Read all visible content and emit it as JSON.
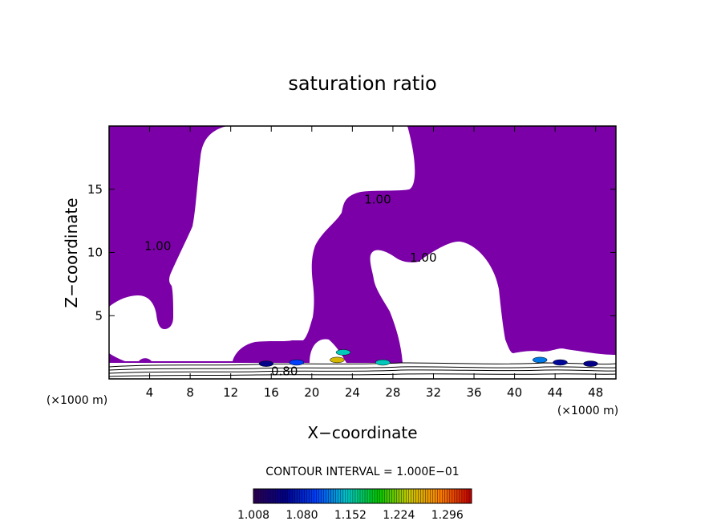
{
  "chart_data": {
    "type": "heatmap",
    "title": "saturation ratio",
    "xlabel": "X−coordinate",
    "ylabel": "Z−coordinate",
    "x_unit": "(×1000 m)",
    "y_unit": "(×1000 m)",
    "xlim": [
      0,
      50
    ],
    "ylim": [
      0,
      20
    ],
    "x_ticks": [
      4,
      8,
      12,
      16,
      20,
      24,
      28,
      32,
      36,
      40,
      44,
      48
    ],
    "x_tick_labels": [
      "4",
      "8",
      "12",
      "16",
      "20",
      "24",
      "28",
      "32",
      "36",
      "40",
      "44",
      "48"
    ],
    "y_ticks": [
      5,
      10,
      15
    ],
    "y_tick_labels": [
      "5",
      "10",
      "15"
    ],
    "contour_interval_text": "CONTOUR INTERVAL = 1.000E−01",
    "colorbar": {
      "min": 1.008,
      "max": 1.332,
      "tick_labels": [
        "1.008",
        "1.080",
        "1.152",
        "1.224",
        "1.296"
      ],
      "colors": [
        "#2a0055",
        "#00008c",
        "#0040ff",
        "#00c8c8",
        "#00c800",
        "#c8c800",
        "#ff8000",
        "#c80000"
      ]
    },
    "fill_color": "#7b00a8",
    "contour_labels": [
      {
        "text": "1.00",
        "x": 4.8,
        "z": 10.5
      },
      {
        "text": "1.00",
        "x": 26.5,
        "z": 14.2
      },
      {
        "text": "1.00",
        "x": 31,
        "z": 9.6
      },
      {
        "text": "0.80",
        "x": 17.3,
        "z": 0.6
      }
    ],
    "supersaturated_regions": [
      {
        "x": [
          0,
          50
        ],
        "z": [
          0,
          20
        ],
        "description_level": "S>1.0"
      }
    ],
    "hotspots": [
      {
        "x": 15.5,
        "z": 1.2,
        "value": 1.05
      },
      {
        "x": 18.5,
        "z": 1.3,
        "value": 1.1
      },
      {
        "x": 22.5,
        "z": 1.5,
        "value": 1.25
      },
      {
        "x": 23.1,
        "z": 2.1,
        "value": 1.15
      },
      {
        "x": 27.0,
        "z": 1.3,
        "value": 1.15
      },
      {
        "x": 42.5,
        "z": 1.5,
        "value": 1.12
      },
      {
        "x": 44.5,
        "z": 1.3,
        "value": 1.06
      },
      {
        "x": 47.5,
        "z": 1.2,
        "value": 1.05
      }
    ]
  }
}
